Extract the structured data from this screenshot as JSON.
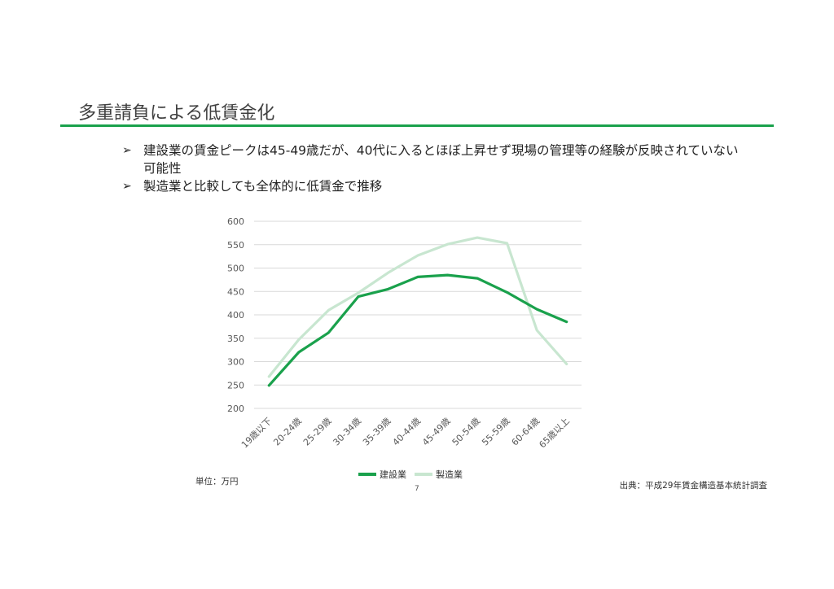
{
  "slide": {
    "title": "多重請負による低賃金化",
    "bullets": [
      {
        "marker": "➢",
        "text": "建設業の賃金ピークは45-49歳だが、40代に入るとほぼ上昇せず現場の管理等の経験が反映されていない可能性"
      },
      {
        "marker": "➢",
        "text": "製造業と比較しても全体的に低賃金で推移"
      }
    ],
    "unit_note": "単位：万円",
    "source_note": "出典：平成29年賃金構造基本統計調査",
    "page_number": "7"
  },
  "colors": {
    "accent": "#1aa14c",
    "construction": "#1aa14c",
    "manufacturing": "#c8e6d0",
    "grid": "#d9d9d9"
  },
  "chart_data": {
    "type": "line",
    "x": [
      "19歳以下",
      "20-24歳",
      "25-29歳",
      "30-34歳",
      "35-39歳",
      "40-44歳",
      "45-49歳",
      "50-54歳",
      "55-59歳",
      "60-64歳",
      "65歳以上"
    ],
    "ylim": [
      200,
      600
    ],
    "yticks": [
      "200",
      "250",
      "300",
      "350",
      "400",
      "450",
      "500",
      "550",
      "600"
    ],
    "series": [
      {
        "name": "建設業",
        "values": [
          249,
          320,
          362,
          439,
          455,
          481,
          485,
          478,
          448,
          412,
          385
        ]
      },
      {
        "name": "製造業",
        "values": [
          268,
          347,
          410,
          447,
          490,
          527,
          551,
          565,
          553,
          367,
          295
        ]
      }
    ],
    "legend": "bottom",
    "grid": true
  }
}
